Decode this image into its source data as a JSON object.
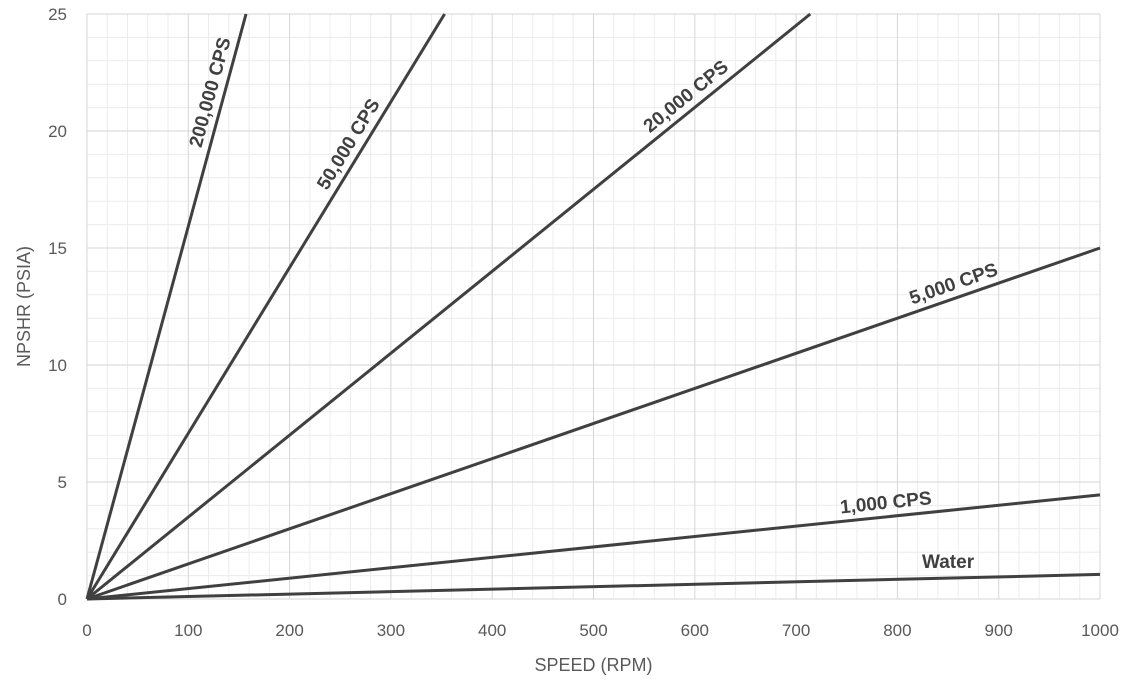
{
  "chart_data": {
    "type": "line",
    "xlabel": "SPEED (RPM)",
    "ylabel": "NPSHR (PSIA)",
    "xlim": [
      0,
      1000
    ],
    "ylim": [
      0,
      25
    ],
    "x_ticks": [
      "0",
      "100",
      "200",
      "300",
      "400",
      "500",
      "600",
      "700",
      "800",
      "900",
      "1000"
    ],
    "y_ticks": [
      "0",
      "5",
      "10",
      "15",
      "20",
      "25"
    ],
    "major_grid": true,
    "minor_grid": true,
    "line_color": "#404040",
    "series": [
      {
        "name": "Water",
        "x": [
          0,
          1000
        ],
        "y": [
          0,
          1.05
        ]
      },
      {
        "name": "1,000 CPS",
        "x": [
          0,
          1000
        ],
        "y": [
          0,
          4.45
        ]
      },
      {
        "name": "5,000 CPS",
        "x": [
          0,
          1000
        ],
        "y": [
          0,
          15
        ]
      },
      {
        "name": "20,000 CPS",
        "x": [
          0,
          714
        ],
        "y": [
          0,
          25
        ]
      },
      {
        "name": "50,000 CPS",
        "x": [
          0,
          353
        ],
        "y": [
          0,
          25
        ]
      },
      {
        "name": "200,000 CPS",
        "x": [
          0,
          157
        ],
        "y": [
          0,
          25
        ]
      }
    ]
  }
}
